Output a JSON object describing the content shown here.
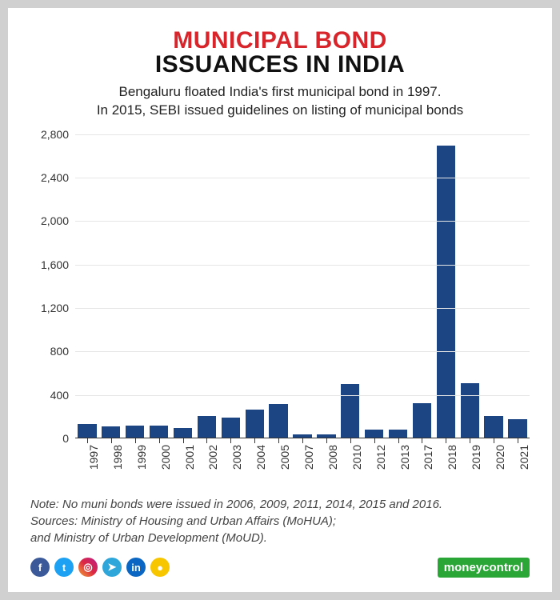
{
  "title": {
    "line1": "MUNICIPAL BOND",
    "line2": "ISSUANCES IN INDIA",
    "line1_color": "#d8252b",
    "line2_color": "#111111",
    "fontsize": 30
  },
  "subtitle": {
    "text": "Bengaluru floated India's first municipal bond in 1997.\nIn 2015, SEBI issued guidelines on listing of municipal bonds",
    "color": "#222222",
    "fontsize": 17
  },
  "chart": {
    "type": "bar",
    "categories": [
      "1997",
      "1998",
      "1999",
      "2000",
      "2001",
      "2002",
      "2003",
      "2004",
      "2005",
      "2007",
      "2008",
      "2010",
      "2012",
      "2013",
      "2017",
      "2018",
      "2019",
      "2020",
      "2021"
    ],
    "values": [
      125,
      100,
      110,
      110,
      85,
      195,
      180,
      260,
      310,
      30,
      25,
      495,
      75,
      70,
      315,
      2690,
      500,
      200,
      170
    ],
    "bar_color": "#1b4683",
    "ylim": [
      0,
      2800
    ],
    "ytick_step": 400,
    "yticks": [
      0,
      400,
      800,
      1200,
      1600,
      2000,
      2400,
      2800
    ],
    "grid_color": "#e6e6e6",
    "axis_color": "#333333",
    "background_color": "#ffffff",
    "tick_fontsize": 14,
    "tick_color": "#333333",
    "xlabel_fontsize": 14
  },
  "note": {
    "line1": "Note: No muni bonds were issued in 2006, 2009, 2011, 2014, 2015 and 2016.",
    "line2": "Sources: Ministry of Housing and Urban Affairs (MoHUA);",
    "line3": "and Ministry of Urban Development (MoUD).",
    "color": "#444444",
    "fontsize": 15
  },
  "socials": [
    {
      "name": "facebook",
      "bg": "#3b5998",
      "glyph": "f"
    },
    {
      "name": "twitter",
      "bg": "#1da1f2",
      "glyph": "t"
    },
    {
      "name": "instagram",
      "bg": "linear-gradient(45deg,#f09433,#e6683c,#dc2743,#cc2366,#bc1888)",
      "glyph": "◎"
    },
    {
      "name": "telegram",
      "bg": "#2ea6da",
      "glyph": "➤"
    },
    {
      "name": "linkedin",
      "bg": "#0a66c2",
      "glyph": "in"
    },
    {
      "name": "koo",
      "bg": "#f7c600",
      "glyph": "●"
    }
  ],
  "logo": {
    "text_pre": "money",
    "text_post": "control",
    "bg": "#2aa637",
    "accent_bg": "#2aa637"
  }
}
